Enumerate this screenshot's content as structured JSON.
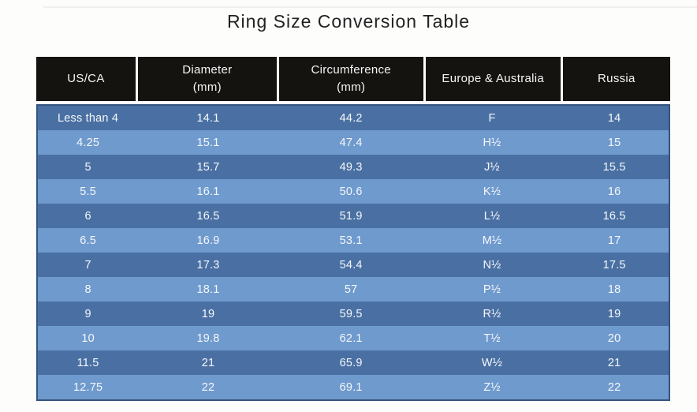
{
  "page": {
    "title": "Ring Size Conversion Table"
  },
  "table": {
    "headers": [
      {
        "label": "US/CA",
        "sub": ""
      },
      {
        "label": "Diameter",
        "sub": "(mm)"
      },
      {
        "label": "Circumference",
        "sub": "(mm)"
      },
      {
        "label": "Europe & Australia",
        "sub": ""
      },
      {
        "label": "Russia",
        "sub": ""
      }
    ],
    "rows": [
      [
        "Less than 4",
        "14.1",
        "44.2",
        "F",
        "14"
      ],
      [
        "4.25",
        "15.1",
        "47.4",
        "H½",
        "15"
      ],
      [
        "5",
        "15.7",
        "49.3",
        "J½",
        "15.5"
      ],
      [
        "5.5",
        "16.1",
        "50.6",
        "K½",
        "16"
      ],
      [
        "6",
        "16.5",
        "51.9",
        "L½",
        "16.5"
      ],
      [
        "6.5",
        "16.9",
        "53.1",
        "M½",
        "17"
      ],
      [
        "7",
        "17.3",
        "54.4",
        "N½",
        "17.5"
      ],
      [
        "8",
        "18.1",
        "57",
        "P½",
        "18"
      ],
      [
        "9",
        "19",
        "59.5",
        "R½",
        "19"
      ],
      [
        "10",
        "19.8",
        "62.1",
        "T½",
        "20"
      ],
      [
        "11.5",
        "21",
        "65.9",
        "W½",
        "21"
      ],
      [
        "12.75",
        "22",
        "69.1",
        "Z½",
        "22"
      ]
    ]
  },
  "colors": {
    "header_bg": "#151310",
    "header_text": "#f5f5f5",
    "row_dark": "#4a70a3",
    "row_light": "#6f9acd",
    "cell_text": "#f4f7fb",
    "title_text": "#222222",
    "body_border": "#35547e",
    "page_bg": "#fdfdfc"
  }
}
